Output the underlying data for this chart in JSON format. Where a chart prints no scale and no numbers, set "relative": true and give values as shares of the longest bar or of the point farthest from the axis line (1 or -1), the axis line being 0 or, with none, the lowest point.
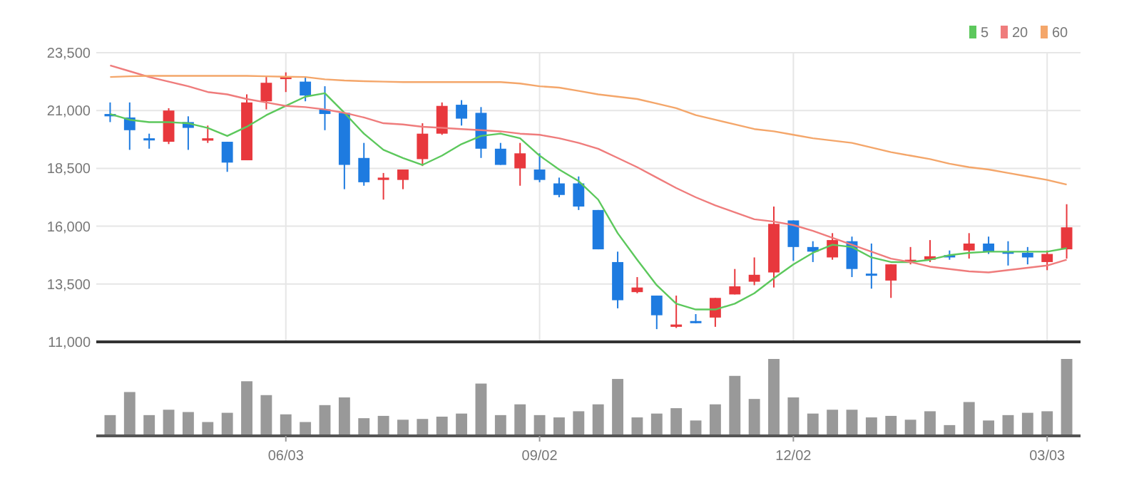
{
  "chart_data": [
    {
      "type": "candlestick",
      "categories": [
        null,
        null,
        null,
        null,
        null,
        null,
        null,
        null,
        null,
        null,
        null,
        null,
        null,
        null,
        null,
        null,
        null,
        null,
        null,
        null,
        null,
        null,
        null,
        null,
        null,
        null,
        null,
        null,
        null,
        null,
        null,
        null,
        null,
        null,
        null,
        null,
        null,
        null,
        null,
        null,
        null,
        null,
        null,
        null,
        null,
        null,
        null,
        null,
        null,
        null
      ],
      "ohlc": [
        [
          20850,
          21350,
          20500,
          20750
        ],
        [
          20700,
          21350,
          19300,
          20150
        ],
        [
          19800,
          20000,
          19350,
          19750
        ],
        [
          19650,
          21100,
          19550,
          21000
        ],
        [
          20500,
          20750,
          19300,
          20250
        ],
        [
          19700,
          20350,
          19600,
          19800
        ],
        [
          19650,
          19650,
          18350,
          18750
        ],
        [
          18850,
          21700,
          18850,
          21350
        ],
        [
          21400,
          22450,
          21050,
          22200
        ],
        [
          22400,
          22650,
          21800,
          22450
        ],
        [
          22250,
          22450,
          21400,
          21650
        ],
        [
          21050,
          22050,
          20150,
          20850
        ],
        [
          20900,
          20900,
          17600,
          18650
        ],
        [
          18950,
          19600,
          17750,
          17900
        ],
        [
          18000,
          18300,
          17150,
          18100
        ],
        [
          18000,
          18450,
          17600,
          18450
        ],
        [
          18900,
          20450,
          18600,
          20000
        ],
        [
          20000,
          21350,
          19950,
          21200
        ],
        [
          21250,
          21450,
          20350,
          20650
        ],
        [
          20900,
          21150,
          18950,
          19350
        ],
        [
          19350,
          19600,
          18650,
          18650
        ],
        [
          18500,
          19600,
          17750,
          19150
        ],
        [
          18450,
          19150,
          17900,
          18000
        ],
        [
          17850,
          18100,
          17250,
          17350
        ],
        [
          17850,
          18150,
          16700,
          16850
        ],
        [
          16700,
          16700,
          15000,
          15000
        ],
        [
          14450,
          14900,
          12450,
          12800
        ],
        [
          13150,
          13800,
          13100,
          13350
        ],
        [
          13000,
          13000,
          11550,
          12150
        ],
        [
          11650,
          13000,
          11600,
          11750
        ],
        [
          11900,
          12200,
          11800,
          11850
        ],
        [
          12050,
          12900,
          11650,
          12900
        ],
        [
          13050,
          14150,
          13050,
          13400
        ],
        [
          13600,
          14650,
          13450,
          13900
        ],
        [
          14000,
          16850,
          13350,
          16100
        ],
        [
          16250,
          16250,
          14500,
          15100
        ],
        [
          15100,
          15350,
          14450,
          14900
        ],
        [
          14650,
          15700,
          14550,
          15400
        ],
        [
          15350,
          15550,
          13800,
          14150
        ],
        [
          13950,
          15250,
          13300,
          13900
        ],
        [
          13650,
          14350,
          12900,
          14350
        ],
        [
          14450,
          15100,
          14350,
          14550
        ],
        [
          14550,
          15400,
          14450,
          14700
        ],
        [
          14750,
          14950,
          14550,
          14650
        ],
        [
          14950,
          15700,
          14600,
          15250
        ],
        [
          15250,
          15550,
          14800,
          14900
        ],
        [
          14900,
          15350,
          14300,
          14850
        ],
        [
          14850,
          15100,
          14350,
          14650
        ],
        [
          14450,
          14950,
          14100,
          14800
        ],
        [
          15000,
          16950,
          14600,
          15950
        ]
      ],
      "colors": [
        "#1e7be0",
        "#1e7be0",
        "#1e7be0",
        "#e8383d",
        "#1e7be0",
        "#e8383d",
        "#1e7be0",
        "#e8383d",
        "#e8383d",
        "#e8383d",
        "#1e7be0",
        "#1e7be0",
        "#1e7be0",
        "#1e7be0",
        "#e8383d",
        "#e8383d",
        "#e8383d",
        "#e8383d",
        "#1e7be0",
        "#1e7be0",
        "#1e7be0",
        "#e8383d",
        "#1e7be0",
        "#1e7be0",
        "#1e7be0",
        "#1e7be0",
        "#1e7be0",
        "#e8383d",
        "#1e7be0",
        "#e8383d",
        "#1e7be0",
        "#e8383d",
        "#e8383d",
        "#e8383d",
        "#e8383d",
        "#1e7be0",
        "#1e7be0",
        "#e8383d",
        "#1e7be0",
        "#1e7be0",
        "#e8383d",
        "#e8383d",
        "#e8383d",
        "#1e7be0",
        "#e8383d",
        "#1e7be0",
        "#1e7be0",
        "#1e7be0",
        "#e8383d",
        "#e8383d"
      ],
      "series": [
        {
          "type": "line",
          "name": "5",
          "color": "#5cc85c",
          "values": [
            20850,
            20600,
            20500,
            20500,
            20450,
            20250,
            19900,
            20300,
            20800,
            21200,
            21600,
            21750,
            20900,
            20000,
            19300,
            18950,
            18650,
            19050,
            19550,
            19900,
            20000,
            19800,
            19050,
            18450,
            17950,
            17150,
            15700,
            14550,
            13450,
            12650,
            12400,
            12400,
            12650,
            13100,
            13750,
            14350,
            14850,
            15200,
            15100,
            14650,
            14450,
            14450,
            14550,
            14750,
            14850,
            14900,
            14900,
            14900,
            14900,
            15050
          ]
        },
        {
          "type": "line",
          "name": "20",
          "color": "#ef7c7c",
          "values": [
            22950,
            22700,
            22450,
            22250,
            22050,
            21800,
            21700,
            21500,
            21350,
            21200,
            21150,
            21050,
            20900,
            20700,
            20450,
            20400,
            20300,
            20250,
            20200,
            20150,
            20100,
            20000,
            19950,
            19800,
            19600,
            19350,
            18950,
            18550,
            18100,
            17650,
            17250,
            16900,
            16600,
            16300,
            16200,
            16050,
            15800,
            15500,
            15200,
            14900,
            14600,
            14450,
            14250,
            14150,
            14050,
            14000,
            14100,
            14200,
            14300,
            14550
          ]
        },
        {
          "type": "line",
          "name": "60",
          "color": "#f4a66a",
          "values": [
            22450,
            22480,
            22500,
            22500,
            22500,
            22500,
            22500,
            22500,
            22480,
            22460,
            22450,
            22350,
            22300,
            22270,
            22250,
            22230,
            22230,
            22230,
            22230,
            22230,
            22230,
            22170,
            22050,
            21990,
            21850,
            21700,
            21600,
            21500,
            21300,
            21100,
            20800,
            20600,
            20400,
            20200,
            20100,
            19950,
            19800,
            19700,
            19600,
            19400,
            19200,
            19050,
            18900,
            18700,
            18550,
            18450,
            18300,
            18150,
            18000,
            17800
          ]
        }
      ],
      "ylim": [
        11000,
        23500
      ],
      "yticks": [
        {
          "value": 11000,
          "label": "11,000"
        },
        {
          "value": 13500,
          "label": "13,500"
        },
        {
          "value": 16000,
          "label": "16,000"
        },
        {
          "value": 18500,
          "label": "18,500"
        },
        {
          "value": 21000,
          "label": "21,000"
        },
        {
          "value": 23500,
          "label": "23,500"
        }
      ],
      "grid": true,
      "legend": "top right",
      "tick_labels": "y"
    },
    {
      "type": "bar",
      "relative": true,
      "color": "#999999",
      "categories": [
        null,
        null,
        null,
        null,
        null,
        null,
        null,
        null,
        null,
        "06/03",
        null,
        null,
        null,
        null,
        null,
        null,
        null,
        null,
        null,
        null,
        null,
        null,
        "09/02",
        null,
        null,
        null,
        null,
        null,
        null,
        null,
        null,
        null,
        null,
        null,
        null,
        "12/02",
        null,
        null,
        null,
        null,
        null,
        null,
        null,
        null,
        null,
        null,
        null,
        null,
        "03/03",
        null
      ],
      "values": [
        0.27,
        0.57,
        0.27,
        0.34,
        0.31,
        0.18,
        0.3,
        0.71,
        0.53,
        0.28,
        0.18,
        0.4,
        0.5,
        0.23,
        0.26,
        0.21,
        0.22,
        0.25,
        0.29,
        0.68,
        0.27,
        0.41,
        0.27,
        0.24,
        0.32,
        0.41,
        0.74,
        0.24,
        0.29,
        0.36,
        0.2,
        0.41,
        0.78,
        0.48,
        1,
        0.5,
        0.29,
        0.34,
        0.34,
        0.24,
        0.26,
        0.21,
        0.32,
        0.14,
        0.44,
        0.2,
        0.27,
        0.3,
        0.32,
        1
      ]
    }
  ]
}
